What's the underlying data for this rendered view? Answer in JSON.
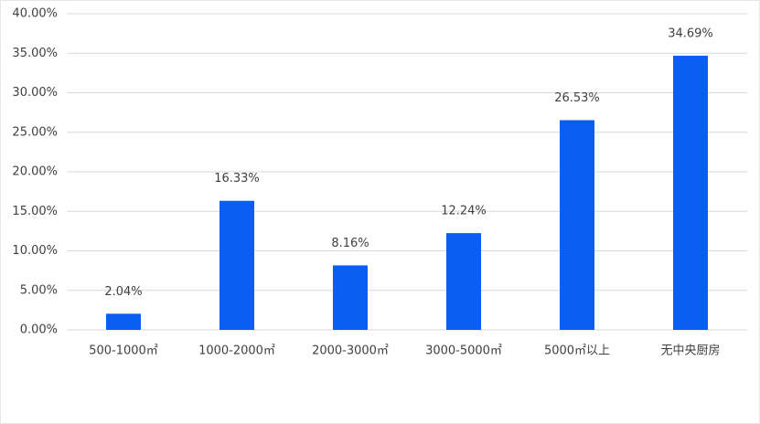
{
  "chart_data": {
    "type": "bar",
    "categories": [
      "500-1000㎡",
      "1000-2000㎡",
      "2000-3000㎡",
      "3000-5000㎡",
      "5000㎡以上",
      "无中央厨房"
    ],
    "values": [
      2.04,
      16.33,
      8.16,
      12.24,
      26.53,
      34.69
    ],
    "value_labels": [
      "2.04%",
      "16.33%",
      "8.16%",
      "12.24%",
      "26.53%",
      "34.69%"
    ],
    "color": "#0b5ef2",
    "ylim": [
      0,
      40
    ],
    "yticks": [
      {
        "value": 0,
        "label": "0.00%"
      },
      {
        "value": 5,
        "label": "5.00%"
      },
      {
        "value": 10,
        "label": "10.00%"
      },
      {
        "value": 15,
        "label": "15.00%"
      },
      {
        "value": 20,
        "label": "20.00%"
      },
      {
        "value": 25,
        "label": "25.00%"
      },
      {
        "value": 30,
        "label": "30.00%"
      },
      {
        "value": 35,
        "label": "35.00%"
      },
      {
        "value": 40,
        "label": "40.00%"
      }
    ],
    "grid": true
  }
}
